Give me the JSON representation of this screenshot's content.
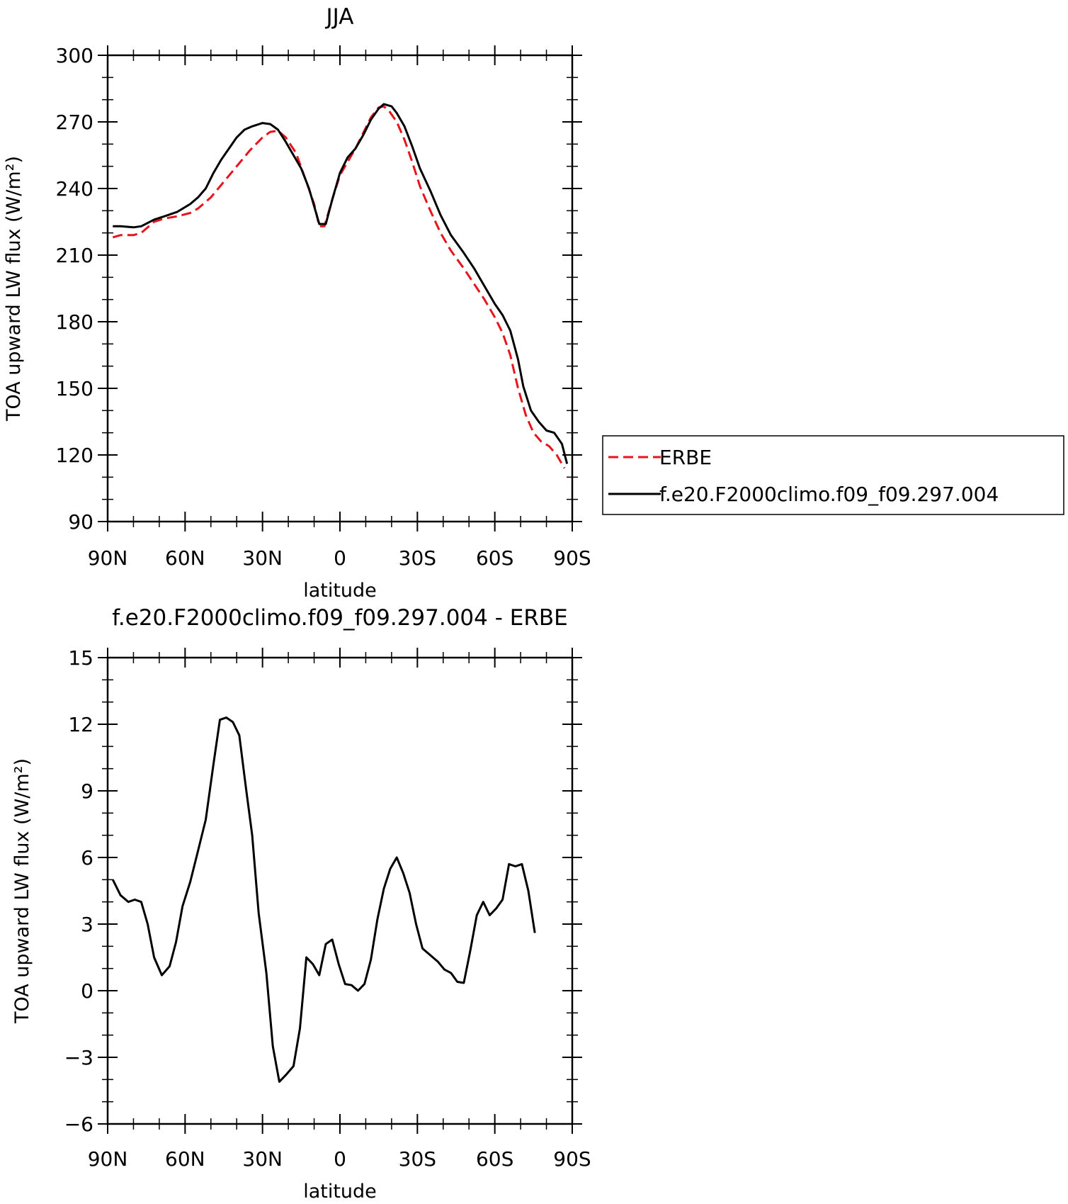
{
  "chart_data": [
    {
      "type": "line",
      "title": "JJA",
      "xlabel": "latitude",
      "ylabel": "TOA upward LW flux (W/m²)",
      "xlim": [
        90,
        -90
      ],
      "ylim": [
        90,
        300
      ],
      "x_ticks": [
        {
          "value": 90,
          "label": "90N"
        },
        {
          "value": 60,
          "label": "60N"
        },
        {
          "value": 30,
          "label": "30N"
        },
        {
          "value": 0,
          "label": "0"
        },
        {
          "value": -30,
          "label": "30S"
        },
        {
          "value": -60,
          "label": "60S"
        },
        {
          "value": -90,
          "label": "90S"
        }
      ],
      "y_ticks": [
        90,
        120,
        150,
        180,
        210,
        240,
        270,
        300
      ],
      "legend_position": "right",
      "series": [
        {
          "name": "ERBE",
          "color": "#e8141c",
          "dash": "dashed",
          "points": [
            [
              88,
              218
            ],
            [
              85,
              219
            ],
            [
              80,
              219
            ],
            [
              77,
              220
            ],
            [
              72,
              225
            ],
            [
              68,
              226.5
            ],
            [
              63,
              227.5
            ],
            [
              58,
              229
            ],
            [
              55,
              231
            ],
            [
              50,
              236
            ],
            [
              45,
              243
            ],
            [
              40,
              250
            ],
            [
              35,
              257
            ],
            [
              30,
              263
            ],
            [
              27,
              265.5
            ],
            [
              24,
              266
            ],
            [
              21,
              263
            ],
            [
              17,
              256
            ],
            [
              13,
              243
            ],
            [
              10,
              233
            ],
            [
              8,
              223
            ],
            [
              6,
              223
            ],
            [
              3,
              235
            ],
            [
              0,
              246
            ],
            [
              -3,
              252
            ],
            [
              -6,
              258
            ],
            [
              -9,
              265
            ],
            [
              -12,
              272
            ],
            [
              -15,
              276.5
            ],
            [
              -17,
              277
            ],
            [
              -19,
              275
            ],
            [
              -22,
              270
            ],
            [
              -25,
              262
            ],
            [
              -28,
              252
            ],
            [
              -31,
              241
            ],
            [
              -35,
              230
            ],
            [
              -39,
              220
            ],
            [
              -43,
              212
            ],
            [
              -48,
              204
            ],
            [
              -52,
              197
            ],
            [
              -56,
              190
            ],
            [
              -60,
              182
            ],
            [
              -63,
              175
            ],
            [
              -66,
              165
            ],
            [
              -69,
              150
            ],
            [
              -72,
              138
            ],
            [
              -75,
              130
            ],
            [
              -78,
              126
            ],
            [
              -81,
              124
            ],
            [
              -84,
              120
            ],
            [
              -87,
              114
            ]
          ]
        },
        {
          "name": "f.e20.F2000climo.f09_f09.297.004",
          "color": "#000000",
          "dash": "solid",
          "points": [
            [
              88,
              223
            ],
            [
              85,
              223
            ],
            [
              80,
              222.5
            ],
            [
              77,
              223
            ],
            [
              72,
              226
            ],
            [
              68,
              227.5
            ],
            [
              63,
              229.5
            ],
            [
              58,
              233
            ],
            [
              55,
              236
            ],
            [
              52,
              240
            ],
            [
              49,
              247
            ],
            [
              46,
              253
            ],
            [
              43,
              258
            ],
            [
              40,
              263
            ],
            [
              37,
              266.5
            ],
            [
              34,
              268
            ],
            [
              30,
              269.5
            ],
            [
              27,
              269
            ],
            [
              24,
              266.5
            ],
            [
              21,
              261
            ],
            [
              18,
              255
            ],
            [
              15,
              249
            ],
            [
              12,
              240
            ],
            [
              9.5,
              230
            ],
            [
              8,
              224
            ],
            [
              5.5,
              224
            ],
            [
              3,
              235
            ],
            [
              0,
              247
            ],
            [
              -3,
              254
            ],
            [
              -6,
              258
            ],
            [
              -9,
              264
            ],
            [
              -12,
              271
            ],
            [
              -15,
              276
            ],
            [
              -17,
              278
            ],
            [
              -20,
              277
            ],
            [
              -22,
              274
            ],
            [
              -25,
              268
            ],
            [
              -28,
              259
            ],
            [
              -31,
              249
            ],
            [
              -35,
              239
            ],
            [
              -39,
              228
            ],
            [
              -43,
              219
            ],
            [
              -48,
              211
            ],
            [
              -52,
              204
            ],
            [
              -56,
              196
            ],
            [
              -60,
              188
            ],
            [
              -63,
              183
            ],
            [
              -66,
              176
            ],
            [
              -69,
              163
            ],
            [
              -71,
              151
            ],
            [
              -74,
              140
            ],
            [
              -77,
              135
            ],
            [
              -80,
              131
            ],
            [
              -83,
              130
            ],
            [
              -86,
              125
            ],
            [
              -88,
              116
            ]
          ]
        }
      ]
    },
    {
      "type": "line",
      "title": "f.e20.F2000climo.f09_f09.297.004 - ERBE",
      "xlabel": "latitude",
      "ylabel": "TOA upward LW flux (W/m²)",
      "xlim": [
        90,
        -90
      ],
      "ylim": [
        -6,
        15
      ],
      "x_ticks": [
        {
          "value": 90,
          "label": "90N"
        },
        {
          "value": 60,
          "label": "60N"
        },
        {
          "value": 30,
          "label": "30N"
        },
        {
          "value": 0,
          "label": "0"
        },
        {
          "value": -30,
          "label": "30S"
        },
        {
          "value": -60,
          "label": "60S"
        },
        {
          "value": -90,
          "label": "90S"
        }
      ],
      "y_ticks": [
        -6,
        -3,
        0,
        3,
        6,
        9,
        12,
        15
      ],
      "series": [
        {
          "name": "",
          "color": "#000000",
          "dash": "solid",
          "points": [
            [
              88,
              5.0
            ],
            [
              85,
              4.3
            ],
            [
              82,
              4.0
            ],
            [
              79.5,
              4.1
            ],
            [
              77,
              4.0
            ],
            [
              74.5,
              3.0
            ],
            [
              72,
              1.5
            ],
            [
              69,
              0.7
            ],
            [
              66,
              1.1
            ],
            [
              63.5,
              2.2
            ],
            [
              61,
              3.8
            ],
            [
              58,
              4.9
            ],
            [
              55,
              6.3
            ],
            [
              52,
              7.7
            ],
            [
              49,
              10.2
            ],
            [
              46.5,
              12.2
            ],
            [
              44,
              12.3
            ],
            [
              41.5,
              12.1
            ],
            [
              39,
              11.5
            ],
            [
              36.5,
              9.2
            ],
            [
              34,
              7.0
            ],
            [
              31.5,
              3.5
            ],
            [
              28.5,
              0.8
            ],
            [
              26,
              -2.5
            ],
            [
              23.5,
              -4.1
            ],
            [
              21,
              -3.8
            ],
            [
              18,
              -3.4
            ],
            [
              15.5,
              -1.7
            ],
            [
              13,
              1.5
            ],
            [
              10.5,
              1.2
            ],
            [
              8,
              0.7
            ],
            [
              5.5,
              2.1
            ],
            [
              3,
              2.3
            ],
            [
              0.5,
              1.2
            ],
            [
              -2,
              0.3
            ],
            [
              -4.5,
              0.25
            ],
            [
              -7,
              0.0
            ],
            [
              -9.5,
              0.3
            ],
            [
              -12,
              1.4
            ],
            [
              -14.5,
              3.2
            ],
            [
              -17,
              4.6
            ],
            [
              -19.5,
              5.5
            ],
            [
              -22,
              6.0
            ],
            [
              -24.5,
              5.3
            ],
            [
              -27,
              4.4
            ],
            [
              -29.5,
              3.0
            ],
            [
              -32,
              1.9
            ],
            [
              -35,
              1.6
            ],
            [
              -38,
              1.3
            ],
            [
              -40.5,
              0.95
            ],
            [
              -43,
              0.8
            ],
            [
              -45.5,
              0.4
            ],
            [
              -48,
              0.35
            ],
            [
              -50.5,
              1.8
            ],
            [
              -53,
              3.4
            ],
            [
              -55.5,
              4.0
            ],
            [
              -58,
              3.4
            ],
            [
              -60.5,
              3.7
            ],
            [
              -63,
              4.1
            ],
            [
              -65.5,
              5.7
            ],
            [
              -68,
              5.6
            ],
            [
              -70.5,
              5.7
            ],
            [
              -73,
              4.5
            ],
            [
              -75.5,
              2.6
            ]
          ]
        }
      ]
    }
  ]
}
